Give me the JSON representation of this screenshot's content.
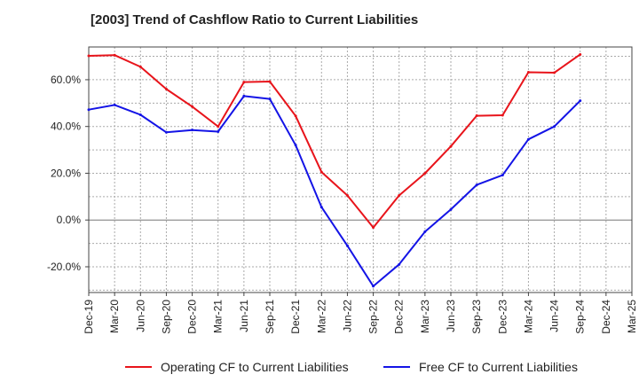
{
  "chart_data": {
    "type": "line",
    "title": "[2003]  Trend of Cashflow Ratio to Current Liabilities",
    "xlabel": "",
    "ylabel": "",
    "x": [
      "Dec-19",
      "Mar-20",
      "Jun-20",
      "Sep-20",
      "Dec-20",
      "Mar-21",
      "Jun-21",
      "Sep-21",
      "Dec-21",
      "Mar-22",
      "Jun-22",
      "Sep-22",
      "Dec-22",
      "Mar-23",
      "Jun-23",
      "Sep-23",
      "Dec-23",
      "Mar-24",
      "Jun-24",
      "Sep-24",
      "Dec-24",
      "Mar-25"
    ],
    "ylim": [
      -31,
      74
    ],
    "y_ticks": [
      -20,
      0,
      20,
      40,
      60
    ],
    "y_tick_labels": [
      "-20.0%",
      "0.0%",
      "20.0%",
      "40.0%",
      "60.0%"
    ],
    "grid": true,
    "legend_position": "bottom",
    "series": [
      {
        "name": "Operating CF to Current Liabilities",
        "color": "#e8141b",
        "values": [
          70.2,
          70.5,
          65.5,
          56.0,
          48.5,
          40.0,
          59.0,
          59.2,
          44.5,
          20.5,
          10.5,
          -3.2,
          10.5,
          20.0,
          31.5,
          44.6,
          44.8,
          63.2,
          63.0,
          70.8,
          null,
          null
        ]
      },
      {
        "name": "Free CF to Current Liabilities",
        "color": "#1414e6",
        "values": [
          47.2,
          49.2,
          45.0,
          37.5,
          38.5,
          37.8,
          53.0,
          51.8,
          32.0,
          5.5,
          -11.0,
          -28.3,
          -19.0,
          -5.0,
          4.5,
          15.0,
          19.2,
          34.5,
          40.0,
          51.0,
          null,
          null
        ]
      }
    ]
  }
}
